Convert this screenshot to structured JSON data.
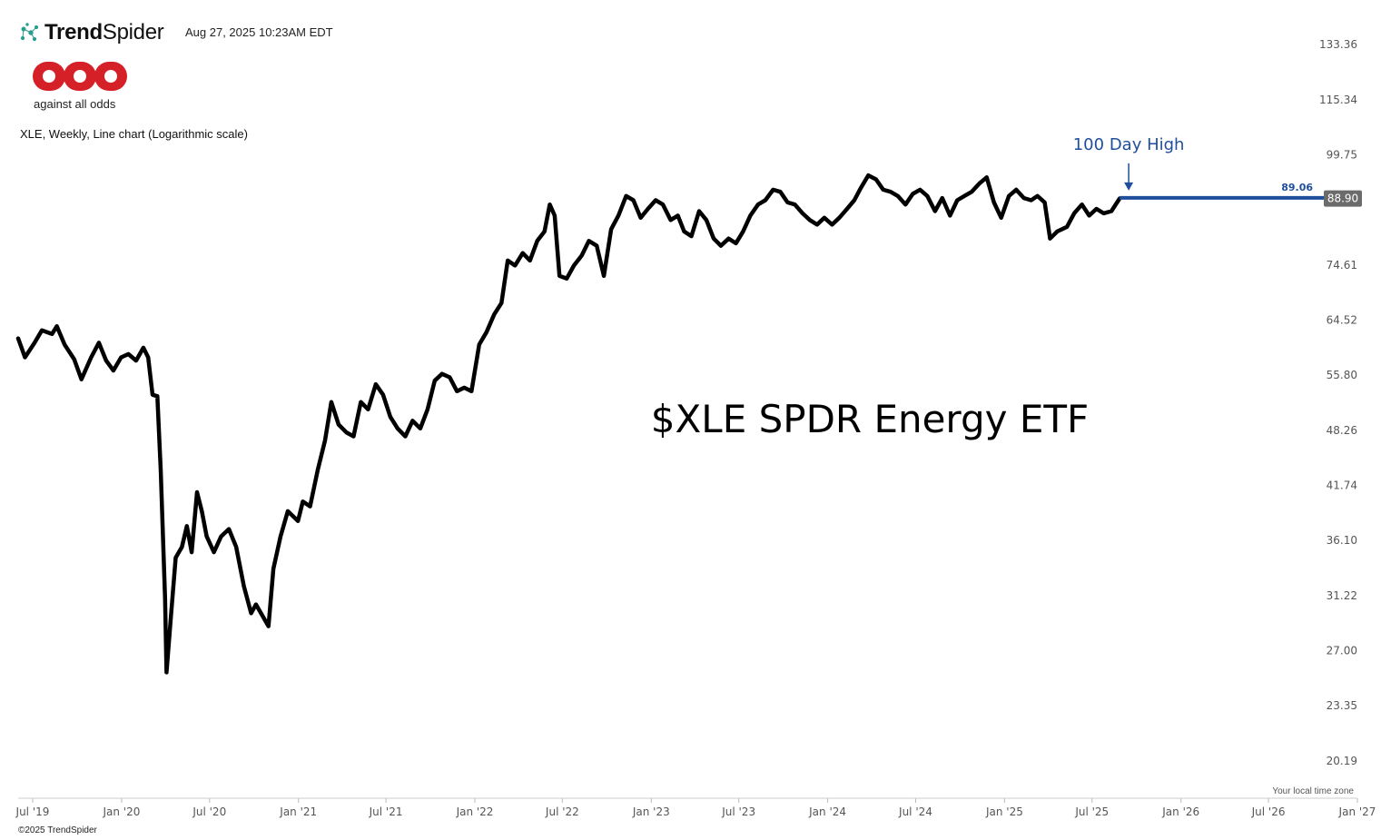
{
  "header": {
    "brand_name_bold": "Trend",
    "brand_name_light": "Spider",
    "timestamp": "Aug 27, 2025 10:23AM EDT",
    "logo_icon": "trendspider-network-icon"
  },
  "publisher": {
    "logo_icon": "against-all-odds-logo",
    "tagline": "against all odds",
    "logo_color": "#d62027"
  },
  "footer": {
    "timezone_note": "Your local time zone",
    "copyright": "©2025 TrendSpider"
  },
  "colors": {
    "line": "#000000",
    "annotation": "#1f4e9c",
    "price_badge": "#6b6b6b"
  },
  "chart_data": {
    "type": "line",
    "subtitle": "XLE, Weekly, Line chart (Logarithmic scale)",
    "overlay_title": "$XLE SPDR Energy ETF",
    "y_scale": "log",
    "ylim": [
      18.7,
      143
    ],
    "y_ticks": [
      "133.36",
      "115.34",
      "99.75",
      "74.61",
      "64.52",
      "55.80",
      "48.26",
      "41.74",
      "36.10",
      "31.22",
      "27.00",
      "23.35",
      "20.19"
    ],
    "x_ticks": [
      "Jul '19",
      "Jan '20",
      "Jul '20",
      "Jan '21",
      "Jul '21",
      "Jan '22",
      "Jul '22",
      "Jan '23",
      "Jul '23",
      "Jan '24",
      "Jul '24",
      "Jan '25",
      "Jul '25",
      "Jan '26",
      "Jul '26",
      "Jan '27"
    ],
    "xlim": [
      "2019-06-01",
      "2027-01-01"
    ],
    "grid": false,
    "series": [
      {
        "points": [
          [
            "2019-06-01",
            61.5
          ],
          [
            "2019-06-15",
            58.5
          ],
          [
            "2019-07-05",
            60.8
          ],
          [
            "2019-07-20",
            62.8
          ],
          [
            "2019-08-10",
            62.2
          ],
          [
            "2019-08-20",
            63.5
          ],
          [
            "2019-09-05",
            60.5
          ],
          [
            "2019-09-25",
            58.2
          ],
          [
            "2019-10-10",
            55.2
          ],
          [
            "2019-10-30",
            58.5
          ],
          [
            "2019-11-15",
            60.8
          ],
          [
            "2019-11-30",
            58.0
          ],
          [
            "2019-12-15",
            56.5
          ],
          [
            "2019-12-31",
            58.5
          ],
          [
            "2020-01-15",
            59.0
          ],
          [
            "2020-01-31",
            58.0
          ],
          [
            "2020-02-15",
            60.0
          ],
          [
            "2020-02-25",
            58.5
          ],
          [
            "2020-03-05",
            53.0
          ],
          [
            "2020-03-15",
            52.8
          ],
          [
            "2020-03-22",
            43.5
          ],
          [
            "2020-03-31",
            31.0
          ],
          [
            "2020-04-03",
            25.5
          ],
          [
            "2020-04-12",
            29.5
          ],
          [
            "2020-04-22",
            34.5
          ],
          [
            "2020-05-05",
            35.5
          ],
          [
            "2020-05-15",
            37.5
          ],
          [
            "2020-05-25",
            35.0
          ],
          [
            "2020-06-05",
            41.0
          ],
          [
            "2020-06-15",
            39.0
          ],
          [
            "2020-06-25",
            36.5
          ],
          [
            "2020-07-10",
            35.0
          ],
          [
            "2020-07-25",
            36.5
          ],
          [
            "2020-08-10",
            37.2
          ],
          [
            "2020-08-25",
            35.5
          ],
          [
            "2020-09-10",
            32.0
          ],
          [
            "2020-09-25",
            29.8
          ],
          [
            "2020-10-05",
            30.5
          ],
          [
            "2020-10-20",
            29.5
          ],
          [
            "2020-10-31",
            28.8
          ],
          [
            "2020-11-10",
            33.5
          ],
          [
            "2020-11-25",
            36.5
          ],
          [
            "2020-12-10",
            39.0
          ],
          [
            "2020-12-31",
            38.0
          ],
          [
            "2021-01-10",
            40.0
          ],
          [
            "2021-01-25",
            39.5
          ],
          [
            "2021-02-10",
            43.5
          ],
          [
            "2021-02-25",
            47.0
          ],
          [
            "2021-03-10",
            52.0
          ],
          [
            "2021-03-25",
            49.0
          ],
          [
            "2021-04-10",
            48.0
          ],
          [
            "2021-04-25",
            47.5
          ],
          [
            "2021-05-10",
            52.0
          ],
          [
            "2021-05-25",
            51.0
          ],
          [
            "2021-06-10",
            54.5
          ],
          [
            "2021-06-25",
            53.0
          ],
          [
            "2021-07-10",
            50.0
          ],
          [
            "2021-07-25",
            48.5
          ],
          [
            "2021-08-10",
            47.5
          ],
          [
            "2021-08-25",
            49.5
          ],
          [
            "2021-09-10",
            48.5
          ],
          [
            "2021-09-25",
            51.0
          ],
          [
            "2021-10-10",
            55.0
          ],
          [
            "2021-10-25",
            56.0
          ],
          [
            "2021-11-10",
            55.5
          ],
          [
            "2021-11-25",
            53.5
          ],
          [
            "2021-12-10",
            54.0
          ],
          [
            "2021-12-25",
            53.5
          ],
          [
            "2022-01-10",
            60.5
          ],
          [
            "2022-01-25",
            62.5
          ],
          [
            "2022-02-10",
            65.5
          ],
          [
            "2022-02-25",
            67.5
          ],
          [
            "2022-03-10",
            75.5
          ],
          [
            "2022-03-25",
            74.5
          ],
          [
            "2022-04-10",
            77.0
          ],
          [
            "2022-04-25",
            75.5
          ],
          [
            "2022-05-10",
            79.5
          ],
          [
            "2022-05-25",
            81.5
          ],
          [
            "2022-06-05",
            87.5
          ],
          [
            "2022-06-15",
            85.0
          ],
          [
            "2022-06-25",
            72.5
          ],
          [
            "2022-07-10",
            72.0
          ],
          [
            "2022-07-25",
            74.5
          ],
          [
            "2022-08-10",
            76.5
          ],
          [
            "2022-08-25",
            79.5
          ],
          [
            "2022-09-10",
            78.5
          ],
          [
            "2022-09-25",
            72.5
          ],
          [
            "2022-10-10",
            82.0
          ],
          [
            "2022-10-25",
            85.0
          ],
          [
            "2022-11-10",
            89.5
          ],
          [
            "2022-11-25",
            88.5
          ],
          [
            "2022-12-10",
            84.5
          ],
          [
            "2022-12-25",
            86.5
          ],
          [
            "2023-01-10",
            88.5
          ],
          [
            "2023-01-25",
            87.5
          ],
          [
            "2023-02-10",
            84.0
          ],
          [
            "2023-02-25",
            85.0
          ],
          [
            "2023-03-10",
            81.5
          ],
          [
            "2023-03-25",
            80.5
          ],
          [
            "2023-04-10",
            86.0
          ],
          [
            "2023-04-25",
            84.0
          ],
          [
            "2023-05-10",
            80.0
          ],
          [
            "2023-05-25",
            78.5
          ],
          [
            "2023-06-10",
            80.0
          ],
          [
            "2023-06-25",
            79.0
          ],
          [
            "2023-07-10",
            81.5
          ],
          [
            "2023-07-25",
            85.0
          ],
          [
            "2023-08-10",
            87.5
          ],
          [
            "2023-08-25",
            88.5
          ],
          [
            "2023-09-10",
            91.0
          ],
          [
            "2023-09-25",
            90.5
          ],
          [
            "2023-10-10",
            88.0
          ],
          [
            "2023-10-25",
            87.5
          ],
          [
            "2023-11-10",
            85.5
          ],
          [
            "2023-11-25",
            84.0
          ],
          [
            "2023-12-10",
            83.0
          ],
          [
            "2023-12-25",
            84.5
          ],
          [
            "2024-01-10",
            83.0
          ],
          [
            "2024-01-25",
            84.5
          ],
          [
            "2024-02-10",
            86.5
          ],
          [
            "2024-02-25",
            88.5
          ],
          [
            "2024-03-10",
            91.5
          ],
          [
            "2024-03-25",
            94.5
          ],
          [
            "2024-04-10",
            93.5
          ],
          [
            "2024-04-25",
            91.0
          ],
          [
            "2024-05-10",
            90.5
          ],
          [
            "2024-05-25",
            89.5
          ],
          [
            "2024-06-10",
            87.5
          ],
          [
            "2024-06-25",
            90.0
          ],
          [
            "2024-07-10",
            91.0
          ],
          [
            "2024-07-25",
            89.5
          ],
          [
            "2024-08-10",
            86.0
          ],
          [
            "2024-08-25",
            89.0
          ],
          [
            "2024-09-10",
            85.0
          ],
          [
            "2024-09-25",
            88.5
          ],
          [
            "2024-10-10",
            89.5
          ],
          [
            "2024-10-25",
            90.5
          ],
          [
            "2024-11-10",
            92.5
          ],
          [
            "2024-11-25",
            94.0
          ],
          [
            "2024-12-10",
            88.0
          ],
          [
            "2024-12-25",
            84.5
          ],
          [
            "2025-01-10",
            89.5
          ],
          [
            "2025-01-25",
            91.0
          ],
          [
            "2025-02-10",
            89.0
          ],
          [
            "2025-02-25",
            88.5
          ],
          [
            "2025-03-10",
            89.5
          ],
          [
            "2025-03-25",
            88.0
          ],
          [
            "2025-04-05",
            80.0
          ],
          [
            "2025-04-20",
            81.5
          ],
          [
            "2025-05-10",
            82.5
          ],
          [
            "2025-05-25",
            85.5
          ],
          [
            "2025-06-10",
            87.5
          ],
          [
            "2025-06-25",
            85.0
          ],
          [
            "2025-07-10",
            86.5
          ],
          [
            "2025-07-25",
            85.5
          ],
          [
            "2025-08-10",
            86.0
          ],
          [
            "2025-08-27",
            88.9
          ]
        ]
      }
    ],
    "annotations": {
      "label": "100 Day High",
      "level": 89.06,
      "level_label": "89.06",
      "level_start": "2025-08-27",
      "last_price": "88.90"
    }
  }
}
